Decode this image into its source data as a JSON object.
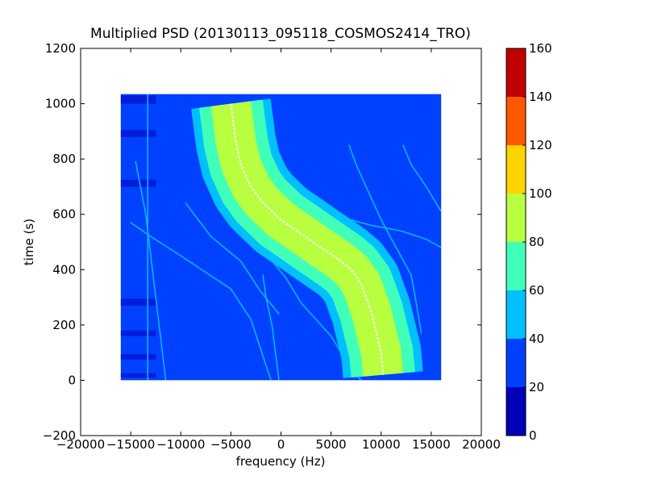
{
  "chart_data": {
    "type": "heatmap",
    "title": "Multiplied PSD (20130113_095118_COSMOS2414_TRO)",
    "xlabel": "frequency (Hz)",
    "ylabel": "time (s)",
    "xlim": [
      -20000,
      20000
    ],
    "ylim": [
      -200,
      1200
    ],
    "x_ticks": [
      -20000,
      -15000,
      -10000,
      -5000,
      0,
      5000,
      10000,
      15000,
      20000
    ],
    "x_tick_labels": [
      "−20000",
      "−15000",
      "−10000",
      "−5000",
      "0",
      "5000",
      "10000",
      "15000",
      "20000"
    ],
    "y_ticks": [
      -200,
      0,
      200,
      400,
      600,
      800,
      1000,
      1200
    ],
    "y_tick_labels": [
      "−200",
      "0",
      "200",
      "400",
      "600",
      "800",
      "1000",
      "1200"
    ],
    "data_extent": {
      "x": [
        -16000,
        16000
      ],
      "y": [
        0,
        1035
      ]
    },
    "colorbar": {
      "range": [
        0,
        160
      ],
      "ticks": [
        0,
        20,
        40,
        60,
        80,
        100,
        120,
        140,
        160
      ],
      "tick_labels": [
        "0",
        "20",
        "40",
        "60",
        "80",
        "100",
        "120",
        "140",
        "160"
      ],
      "levels": [
        {
          "from": 0,
          "to": 20,
          "color": "#0000b8"
        },
        {
          "from": 20,
          "to": 40,
          "color": "#0040ff"
        },
        {
          "from": 40,
          "to": 60,
          "color": "#00c0ff"
        },
        {
          "from": 60,
          "to": 80,
          "color": "#40ffb8"
        },
        {
          "from": 80,
          "to": 100,
          "color": "#b8ff40"
        },
        {
          "from": 100,
          "to": 120,
          "color": "#ffd400"
        },
        {
          "from": 120,
          "to": 140,
          "color": "#ff5800"
        },
        {
          "from": 140,
          "to": 160,
          "color": "#c00000"
        }
      ]
    },
    "background_level": 30,
    "main_trace": {
      "center": [
        [
          -5000,
          1000
        ],
        [
          -4500,
          860
        ],
        [
          -4000,
          780
        ],
        [
          -3000,
          700
        ],
        [
          -2000,
          650
        ],
        [
          0,
          580
        ],
        [
          2000,
          530
        ],
        [
          4000,
          480
        ],
        [
          6000,
          430
        ],
        [
          7000,
          400
        ],
        [
          8000,
          350
        ],
        [
          9000,
          250
        ],
        [
          10000,
          100
        ],
        [
          10200,
          20
        ]
      ],
      "bands": [
        {
          "level": 50,
          "half_width": 4000
        },
        {
          "level": 70,
          "half_width": 3200
        },
        {
          "level": 90,
          "half_width": 2000
        },
        {
          "level": 95,
          "half_width": 80
        }
      ]
    },
    "faint_traces": [
      {
        "level": 50,
        "points": [
          [
            -7500,
            790
          ],
          [
            -6000,
            660
          ],
          [
            -4000,
            560
          ],
          [
            -2000,
            480
          ],
          [
            500,
            370
          ],
          [
            2000,
            280
          ],
          [
            5000,
            160
          ],
          [
            7000,
            40
          ],
          [
            8000,
            0
          ]
        ]
      },
      {
        "level": 50,
        "points": [
          [
            -9500,
            640
          ],
          [
            -7000,
            520
          ],
          [
            -4000,
            430
          ],
          [
            -2000,
            320
          ],
          [
            -200,
            240
          ]
        ]
      },
      {
        "level": 50,
        "points": [
          [
            -14500,
            790
          ],
          [
            -13500,
            600
          ],
          [
            -12500,
            300
          ],
          [
            -11500,
            0
          ]
        ]
      },
      {
        "level": 50,
        "points": [
          [
            -15000,
            570
          ],
          [
            -13000,
            520
          ],
          [
            -10000,
            450
          ],
          [
            -5000,
            330
          ],
          [
            -3000,
            220
          ],
          [
            -1000,
            0
          ]
        ]
      },
      {
        "level": 50,
        "points": [
          [
            -1800,
            380
          ],
          [
            -1500,
            300
          ],
          [
            -900,
            200
          ],
          [
            -200,
            0
          ]
        ]
      },
      {
        "level": 50,
        "points": [
          [
            6800,
            850
          ],
          [
            7500,
            780
          ],
          [
            10000,
            580
          ],
          [
            13000,
            380
          ],
          [
            13500,
            280
          ],
          [
            14000,
            170
          ]
        ]
      },
      {
        "level": 50,
        "points": [
          [
            12200,
            850
          ],
          [
            13000,
            780
          ],
          [
            14500,
            700
          ],
          [
            16000,
            610
          ]
        ]
      },
      {
        "level": 50,
        "points": [
          [
            6000,
            590
          ],
          [
            9000,
            560
          ],
          [
            12000,
            540
          ],
          [
            14500,
            510
          ],
          [
            16000,
            480
          ]
        ]
      }
    ],
    "vertical_lines": [
      {
        "x": -13300,
        "level": 50
      }
    ],
    "dark_bands": [
      {
        "x": [
          -16000,
          -12500
        ],
        "y": [
          1000,
          1030
        ],
        "level": 10
      },
      {
        "x": [
          -16000,
          -12500
        ],
        "y": [
          880,
          905
        ],
        "level": 10
      },
      {
        "x": [
          -16000,
          -12500
        ],
        "y": [
          700,
          725
        ],
        "level": 10
      },
      {
        "x": [
          -16000,
          -12500
        ],
        "y": [
          270,
          295
        ],
        "level": 10
      },
      {
        "x": [
          -16000,
          -12500
        ],
        "y": [
          160,
          180
        ],
        "level": 10
      },
      {
        "x": [
          -16000,
          -12500
        ],
        "y": [
          75,
          95
        ],
        "level": 10
      },
      {
        "x": [
          -16000,
          -12500
        ],
        "y": [
          10,
          25
        ],
        "level": 10
      }
    ]
  }
}
